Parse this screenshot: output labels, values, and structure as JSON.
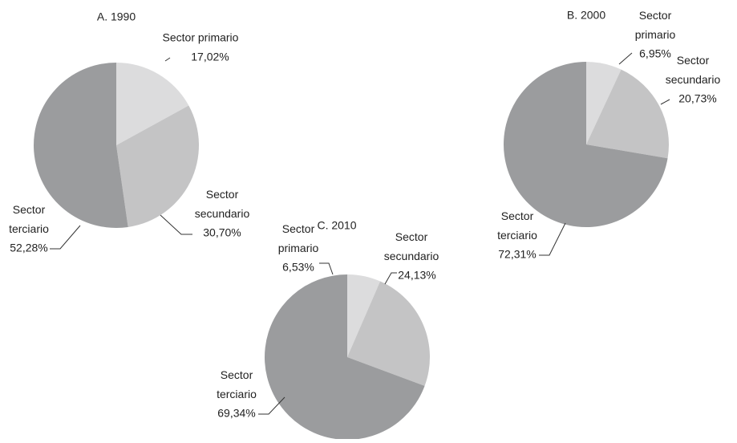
{
  "chart_data": [
    {
      "type": "pie",
      "title": "A. 1990",
      "categories": [
        "Sector primario",
        "Sector secundario",
        "Sector terciario"
      ],
      "values": [
        17.02,
        30.7,
        52.28
      ],
      "value_labels": [
        "17,02%",
        "30,70%",
        "52,28%"
      ],
      "colors": [
        "#dcdcdd",
        "#c4c4c5",
        "#9b9c9e"
      ]
    },
    {
      "type": "pie",
      "title": "B. 2000",
      "categories": [
        "Sector primario",
        "Sector secundario",
        "Sector terciario"
      ],
      "values": [
        6.95,
        20.73,
        72.31
      ],
      "value_labels": [
        "6,95%",
        "20,73%",
        "72,31%"
      ],
      "colors": [
        "#dcdcdd",
        "#c4c4c5",
        "#9b9c9e"
      ]
    },
    {
      "type": "pie",
      "title": "C. 2010",
      "categories": [
        "Sector primario",
        "Sector secundario",
        "Sector terciario"
      ],
      "values": [
        6.53,
        24.13,
        69.34
      ],
      "value_labels": [
        "6,53%",
        "24,13%",
        "69,34%"
      ],
      "colors": [
        "#dcdcdd",
        "#c4c4c5",
        "#9b9c9e"
      ]
    }
  ]
}
